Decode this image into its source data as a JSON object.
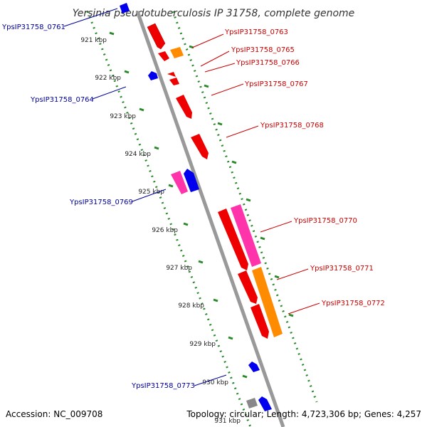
{
  "title": "Yersinia pseudotuberculosis IP 31758, complete genome",
  "footer": {
    "accession": "Accession: NC_009708",
    "summary": "Topology: circular; Length: 4,723,306 bp; Genes: 4,257"
  },
  "colors": {
    "forward_label": "#cc0000",
    "reverse_label": "#000099",
    "backbone": "#888888",
    "ruler": "#2a8a2a"
  },
  "ticks": [
    "921 kbp",
    "922 kbp",
    "923 kbp",
    "924 kbp",
    "925 kbp",
    "926 kbp",
    "927 kbp",
    "928 kbp",
    "929 kbp",
    "930 kbp",
    "931 kbp"
  ],
  "gene_labels": [
    {
      "text": "YpsIP31758_0761",
      "strand": "reverse"
    },
    {
      "text": "YpsIP31758_0763",
      "strand": "forward"
    },
    {
      "text": "YpsIP31758_0765",
      "strand": "forward"
    },
    {
      "text": "YpsIP31758_0766",
      "strand": "forward"
    },
    {
      "text": "YpsIP31758_0764",
      "strand": "reverse"
    },
    {
      "text": "YpsIP31758_0767",
      "strand": "forward"
    },
    {
      "text": "YpsIP31758_0768",
      "strand": "forward"
    },
    {
      "text": "YpsIP31758_0769",
      "strand": "reverse"
    },
    {
      "text": "YpsIP31758_0770",
      "strand": "forward"
    },
    {
      "text": "YpsIP31758_0771",
      "strand": "forward"
    },
    {
      "text": "YpsIP31758_0772",
      "strand": "forward"
    },
    {
      "text": "YpsIP31758_0773",
      "strand": "reverse"
    }
  ]
}
